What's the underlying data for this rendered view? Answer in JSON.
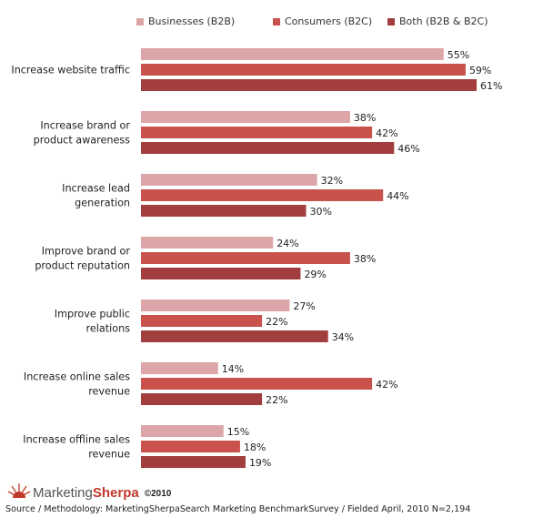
{
  "chart_data": {
    "type": "bar",
    "orientation": "horizontal",
    "title": "",
    "xlabel": "",
    "ylabel": "",
    "xlim": [
      0,
      62
    ],
    "grid": false,
    "legend_position": "top",
    "categories": [
      "Increase website traffic",
      "Increase brand or product awareness",
      "Increase lead generation",
      "Improve brand or product reputation",
      "Improve public relations",
      "Increase online sales revenue",
      "Increase offline sales revenue"
    ],
    "category_label_lines": [
      [
        "Increase website traffic"
      ],
      [
        "Increase brand or",
        "product awareness"
      ],
      [
        "Increase lead",
        "generation"
      ],
      [
        "Improve brand or",
        "product reputation"
      ],
      [
        "Improve public",
        "relations"
      ],
      [
        "Increase online sales",
        "revenue"
      ],
      [
        "Increase offline sales",
        "revenue"
      ]
    ],
    "series": [
      {
        "name": "Businesses (B2B)",
        "color": "#dca5a8",
        "values": [
          55,
          38,
          32,
          24,
          27,
          14,
          15
        ]
      },
      {
        "name": "Consumers (B2C)",
        "color": "#c9524d",
        "values": [
          59,
          42,
          44,
          38,
          22,
          42,
          18
        ]
      },
      {
        "name": "Both (B2B & B2C)",
        "color": "#a23e3d",
        "values": [
          61,
          46,
          30,
          29,
          34,
          22,
          19
        ]
      }
    ],
    "value_suffix": "%"
  },
  "branding": {
    "logo_part1": "Marketing",
    "logo_part2": "Sherpa",
    "copyright": "©2010"
  },
  "source": "Source / Methodology: MarketingSherpaSearch Marketing BenchmarkSurvey / Fielded April, 2010 N=2,194"
}
